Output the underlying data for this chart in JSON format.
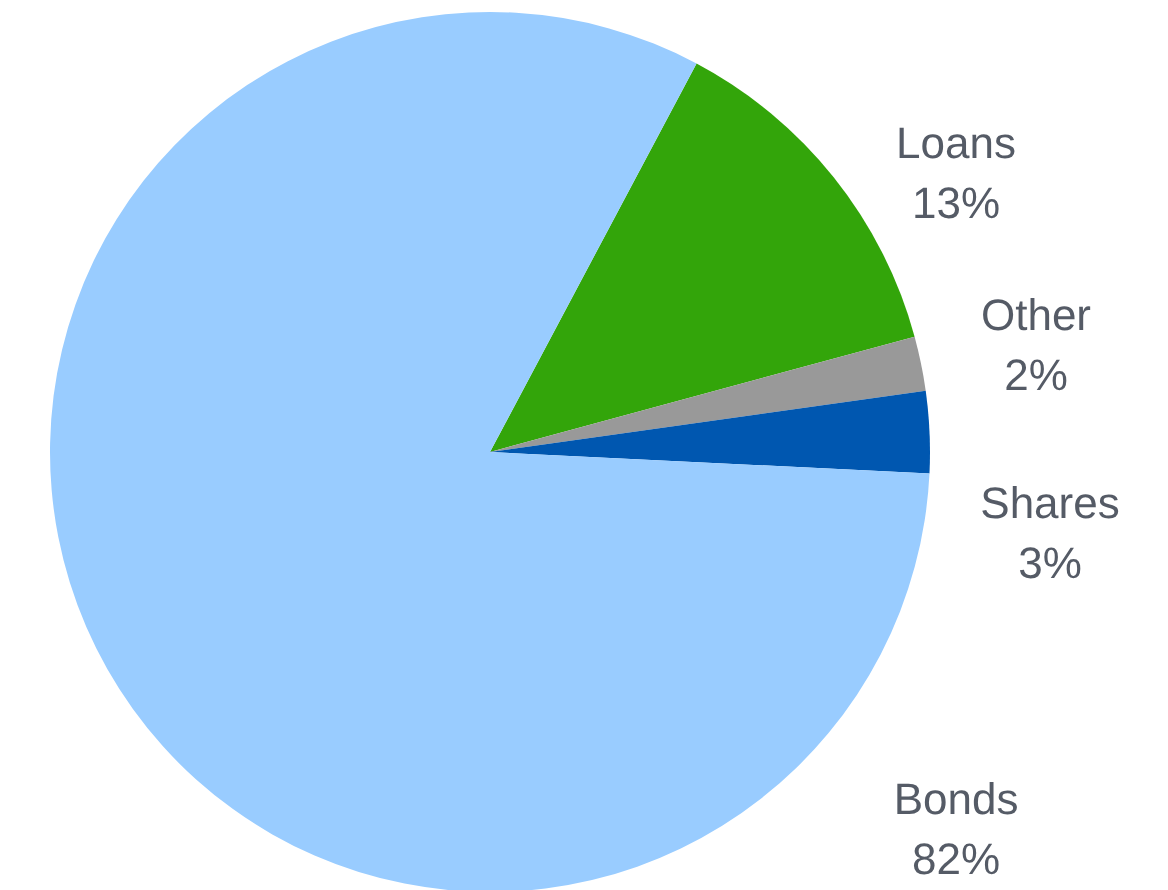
{
  "chart_data": {
    "type": "pie",
    "categories": [
      "Loans",
      "Other",
      "Shares",
      "Bonds"
    ],
    "values": [
      13,
      2,
      3,
      82
    ],
    "colors": [
      "#33a50a",
      "#999999",
      "#0057b0",
      "#99ccff"
    ],
    "value_labels": [
      "13%",
      "2%",
      "3%",
      "82%"
    ]
  }
}
